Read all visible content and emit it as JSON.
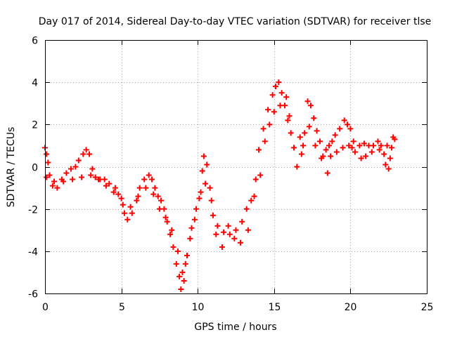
{
  "chart_data": {
    "type": "scatter",
    "title": "Day 017 of 2014, Sidereal Day-to-day VTEC variation (SDTVAR) for receiver tlse",
    "xlabel": "GPS time / hours",
    "ylabel": "SDTVAR / TECUs",
    "xlim": [
      0,
      25
    ],
    "ylim": [
      -6,
      6
    ],
    "xticks": [
      0,
      5,
      10,
      15,
      20,
      25
    ],
    "yticks": [
      -6,
      -4,
      -2,
      0,
      2,
      4,
      6
    ],
    "grid": true,
    "marker": "+",
    "series_color": "#ff0000",
    "series": [
      {
        "name": "SDTVAR tlse",
        "points": [
          [
            0.0,
            0.9
          ],
          [
            0.1,
            0.6
          ],
          [
            0.2,
            0.2
          ],
          [
            0.3,
            -0.4
          ],
          [
            0.5,
            -0.9
          ],
          [
            0.8,
            -1.0
          ],
          [
            1.1,
            -0.6
          ],
          [
            1.4,
            -0.3
          ],
          [
            1.7,
            -0.1
          ],
          [
            2.0,
            0.0
          ],
          [
            2.2,
            0.3
          ],
          [
            2.5,
            0.6
          ],
          [
            2.7,
            0.8
          ],
          [
            2.9,
            0.6
          ],
          [
            3.1,
            -0.1
          ],
          [
            3.3,
            -0.5
          ],
          [
            3.6,
            -0.6
          ],
          [
            3.9,
            -0.6
          ],
          [
            4.2,
            -0.8
          ],
          [
            4.5,
            -1.2
          ],
          [
            4.8,
            -1.3
          ],
          [
            5.0,
            -1.5
          ],
          [
            5.2,
            -2.2
          ],
          [
            5.4,
            -2.5
          ],
          [
            5.7,
            -2.2
          ],
          [
            6.0,
            -1.6
          ],
          [
            6.2,
            -1.0
          ],
          [
            6.5,
            -0.6
          ],
          [
            6.8,
            -0.4
          ],
          [
            7.0,
            -0.6
          ],
          [
            7.2,
            -1.0
          ],
          [
            7.4,
            -1.4
          ],
          [
            7.6,
            -1.6
          ],
          [
            7.8,
            -2.0
          ],
          [
            8.0,
            -2.6
          ],
          [
            8.2,
            -3.2
          ],
          [
            8.4,
            -3.8
          ],
          [
            8.6,
            -4.6
          ],
          [
            8.8,
            -5.2
          ],
          [
            8.9,
            -5.8
          ],
          [
            9.1,
            -5.4
          ],
          [
            9.3,
            -4.2
          ],
          [
            9.5,
            -3.4
          ],
          [
            9.8,
            -2.5
          ],
          [
            10.1,
            -1.5
          ],
          [
            10.3,
            -0.2
          ],
          [
            10.4,
            0.5
          ],
          [
            10.6,
            0.1
          ],
          [
            10.8,
            -1.0
          ],
          [
            11.0,
            -2.3
          ],
          [
            11.3,
            -2.8
          ],
          [
            11.7,
            -3.1
          ],
          [
            12.1,
            -3.2
          ],
          [
            12.5,
            -3.0
          ],
          [
            12.9,
            -2.6
          ],
          [
            13.2,
            -2.0
          ],
          [
            13.5,
            -1.6
          ],
          [
            13.8,
            -0.6
          ],
          [
            14.0,
            0.8
          ],
          [
            14.3,
            1.8
          ],
          [
            14.6,
            2.7
          ],
          [
            14.9,
            3.4
          ],
          [
            15.1,
            3.8
          ],
          [
            15.3,
            4.0
          ],
          [
            15.5,
            3.5
          ],
          [
            15.7,
            2.9
          ],
          [
            15.9,
            2.2
          ],
          [
            16.1,
            1.6
          ],
          [
            16.3,
            0.9
          ],
          [
            16.5,
            0.0
          ],
          [
            16.8,
            0.6
          ],
          [
            17.0,
            1.6
          ],
          [
            17.2,
            3.1
          ],
          [
            17.4,
            2.9
          ],
          [
            17.6,
            2.3
          ],
          [
            17.8,
            1.7
          ],
          [
            18.0,
            1.2
          ],
          [
            18.2,
            0.5
          ],
          [
            18.4,
            0.8
          ],
          [
            18.6,
            1.0
          ],
          [
            18.8,
            1.2
          ],
          [
            19.0,
            1.5
          ],
          [
            19.3,
            1.8
          ],
          [
            19.6,
            2.2
          ],
          [
            19.8,
            2.0
          ],
          [
            20.0,
            1.8
          ],
          [
            20.1,
            0.9
          ],
          [
            20.3,
            0.7
          ],
          [
            20.6,
            1.0
          ],
          [
            20.9,
            1.1
          ],
          [
            21.2,
            1.0
          ],
          [
            21.5,
            1.0
          ],
          [
            21.8,
            1.2
          ],
          [
            22.0,
            1.0
          ],
          [
            22.2,
            0.6
          ],
          [
            22.3,
            0.1
          ],
          [
            22.5,
            -0.1
          ],
          [
            22.6,
            0.4
          ],
          [
            22.7,
            0.9
          ],
          [
            22.8,
            1.4
          ],
          [
            0.1,
            -0.5
          ],
          [
            0.6,
            -0.7
          ],
          [
            1.2,
            -0.7
          ],
          [
            1.8,
            -0.6
          ],
          [
            2.4,
            -0.5
          ],
          [
            3.0,
            -0.4
          ],
          [
            3.5,
            -0.6
          ],
          [
            4.0,
            -0.9
          ],
          [
            4.6,
            -1.0
          ],
          [
            5.1,
            -1.8
          ],
          [
            5.6,
            -1.9
          ],
          [
            6.1,
            -1.4
          ],
          [
            6.6,
            -1.0
          ],
          [
            7.1,
            -1.3
          ],
          [
            7.5,
            -2.0
          ],
          [
            7.9,
            -2.4
          ],
          [
            8.3,
            -3.0
          ],
          [
            8.7,
            -4.0
          ],
          [
            9.0,
            -5.0
          ],
          [
            9.2,
            -4.6
          ],
          [
            9.6,
            -2.9
          ],
          [
            9.9,
            -2.0
          ],
          [
            10.2,
            -1.2
          ],
          [
            10.5,
            -0.8
          ],
          [
            10.9,
            -1.6
          ],
          [
            11.2,
            -3.2
          ],
          [
            11.6,
            -3.8
          ],
          [
            12.0,
            -2.8
          ],
          [
            12.4,
            -3.4
          ],
          [
            12.8,
            -3.6
          ],
          [
            13.3,
            -3.0
          ],
          [
            13.7,
            -1.4
          ],
          [
            14.1,
            -0.4
          ],
          [
            14.4,
            1.2
          ],
          [
            14.7,
            2.0
          ],
          [
            15.0,
            2.6
          ],
          [
            15.4,
            2.9
          ],
          [
            15.8,
            3.3
          ],
          [
            16.0,
            2.4
          ],
          [
            16.7,
            1.4
          ],
          [
            16.9,
            1.0
          ],
          [
            17.3,
            1.9
          ],
          [
            17.7,
            1.0
          ],
          [
            18.1,
            0.4
          ],
          [
            18.5,
            -0.3
          ],
          [
            18.7,
            0.5
          ],
          [
            19.1,
            0.7
          ],
          [
            19.5,
            0.9
          ],
          [
            19.9,
            1.0
          ],
          [
            20.2,
            1.2
          ],
          [
            20.7,
            0.4
          ],
          [
            21.0,
            0.5
          ],
          [
            21.4,
            0.7
          ],
          [
            21.9,
            0.8
          ],
          [
            22.4,
            1.0
          ],
          [
            22.9,
            1.3
          ]
        ]
      }
    ]
  }
}
